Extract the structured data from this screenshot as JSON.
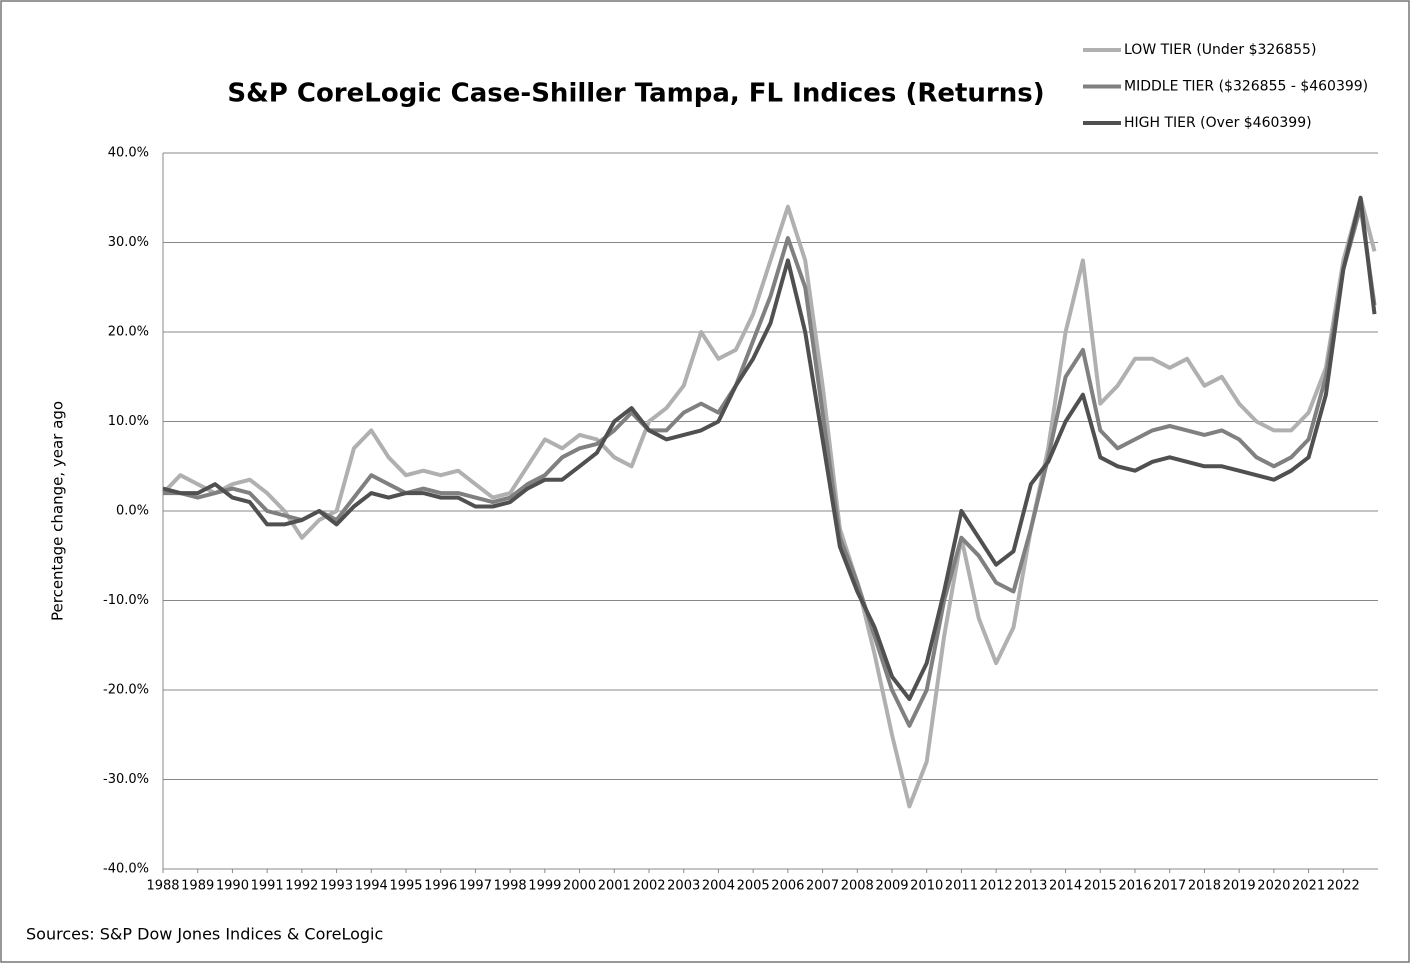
{
  "chart_data": {
    "type": "line",
    "title": "S&P CoreLogic Case-Shiller Tampa, FL Indices (Returns)",
    "y_label": "Percentage change, year ago",
    "source": "Sources: S&P Dow Jones Indices & CoreLogic",
    "grid": true,
    "legend": "top-right",
    "xlim": [
      1988,
      2023
    ],
    "xticks": [
      1988,
      1989,
      1990,
      1991,
      1992,
      1993,
      1994,
      1995,
      1996,
      1997,
      1998,
      1999,
      2000,
      2001,
      2002,
      2003,
      2004,
      2005,
      2006,
      2007,
      2008,
      2009,
      2010,
      2011,
      2012,
      2013,
      2014,
      2015,
      2016,
      2017,
      2018,
      2019,
      2020,
      2021,
      2022
    ],
    "ylim": [
      -40,
      40
    ],
    "yticks": [
      {
        "value": -40,
        "label": "-40.0%"
      },
      {
        "value": -30,
        "label": "-30.0%"
      },
      {
        "value": -20,
        "label": "-20.0%"
      },
      {
        "value": -10,
        "label": "-10.0%"
      },
      {
        "value": 0,
        "label": "0.0%"
      },
      {
        "value": 10,
        "label": "10.0%"
      },
      {
        "value": 20,
        "label": "20.0%"
      },
      {
        "value": 30,
        "label": "30.0%"
      },
      {
        "value": 40,
        "label": "40.0%"
      }
    ],
    "x": [
      1988.0,
      1988.5,
      1989.0,
      1989.5,
      1990.0,
      1990.5,
      1991.0,
      1991.5,
      1992.0,
      1992.5,
      1993.0,
      1993.5,
      1994.0,
      1994.5,
      1995.0,
      1995.5,
      1996.0,
      1996.5,
      1997.0,
      1997.5,
      1998.0,
      1998.5,
      1999.0,
      1999.5,
      2000.0,
      2000.5,
      2001.0,
      2001.5,
      2002.0,
      2002.5,
      2003.0,
      2003.5,
      2004.0,
      2004.5,
      2005.0,
      2005.5,
      2006.0,
      2006.5,
      2007.0,
      2007.5,
      2008.0,
      2008.5,
      2009.0,
      2009.5,
      2010.0,
      2010.5,
      2011.0,
      2011.5,
      2012.0,
      2012.5,
      2013.0,
      2013.5,
      2014.0,
      2014.5,
      2015.0,
      2015.5,
      2016.0,
      2016.5,
      2017.0,
      2017.5,
      2018.0,
      2018.5,
      2019.0,
      2019.5,
      2020.0,
      2020.5,
      2021.0,
      2021.5,
      2022.0,
      2022.5,
      2022.9
    ],
    "series": [
      {
        "name": "LOW TIER (Under $326855)",
        "color": "#b0b0b0",
        "values": [
          2,
          4,
          3,
          2,
          3,
          3.5,
          2,
          0,
          -3,
          -1,
          0,
          7,
          9,
          6,
          4,
          4.5,
          4,
          4.5,
          3,
          1.5,
          2,
          5,
          8,
          7,
          8.5,
          8,
          6,
          5,
          10,
          11.5,
          14,
          20,
          17,
          18,
          22,
          28,
          34,
          28,
          14,
          -2,
          -8,
          -16,
          -25,
          -33,
          -28,
          -14,
          -3,
          -12,
          -17,
          -13,
          -2,
          7,
          20,
          28,
          12,
          14,
          17,
          17,
          16,
          17,
          14,
          15,
          12,
          10,
          9,
          9,
          11,
          16,
          28,
          35,
          29
        ]
      },
      {
        "name": "MIDDLE TIER ($326855 - $460399)",
        "color": "#808080",
        "values": [
          2,
          2,
          1.5,
          2,
          2.5,
          2,
          0,
          -0.5,
          -1,
          0,
          -1,
          1.5,
          4,
          3,
          2,
          2.5,
          2,
          2,
          1.5,
          1,
          1.5,
          3,
          4,
          6,
          7,
          7.5,
          9,
          11,
          9,
          9,
          11,
          12,
          11,
          14,
          19,
          24,
          30.5,
          25,
          11,
          -3,
          -8,
          -14,
          -20,
          -24,
          -20,
          -10,
          -3,
          -5,
          -8,
          -9,
          -2,
          6,
          15,
          18,
          9,
          7,
          8,
          9,
          9.5,
          9,
          8.5,
          9,
          8,
          6,
          5,
          6,
          8,
          15,
          27,
          34,
          23
        ]
      },
      {
        "name": "HIGH TIER (Over $460399)",
        "color": "#505050",
        "values": [
          2.5,
          2,
          2,
          3,
          1.5,
          1,
          -1.5,
          -1.5,
          -1,
          0,
          -1.5,
          0.5,
          2,
          1.5,
          2,
          2,
          1.5,
          1.5,
          0.5,
          0.5,
          1,
          2.5,
          3.5,
          3.5,
          5,
          6.5,
          10,
          11.5,
          9,
          8,
          8.5,
          9,
          10,
          14,
          17,
          21,
          28,
          20,
          8,
          -4,
          -9,
          -13,
          -18.5,
          -21,
          -17,
          -9,
          0,
          -3,
          -6,
          -4.5,
          3,
          5.5,
          10,
          13,
          6,
          5,
          4.5,
          5.5,
          6,
          5.5,
          5,
          5,
          4.5,
          4,
          3.5,
          4.5,
          6,
          13,
          27,
          35,
          22
        ]
      }
    ]
  }
}
